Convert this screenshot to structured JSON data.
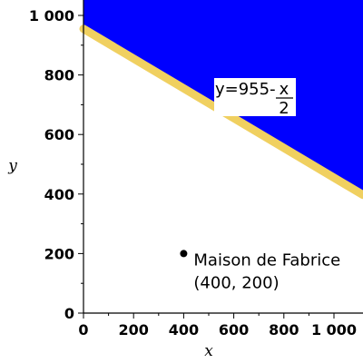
{
  "chart_data": {
    "type": "line",
    "xlabel": "x",
    "ylabel": "y",
    "xlim": [
      0,
      1000
    ],
    "ylim": [
      0,
      1000
    ],
    "x_ticks": [
      "0",
      "200",
      "400",
      "600",
      "800",
      "1 000"
    ],
    "y_ticks": [
      "0",
      "200",
      "400",
      "600",
      "800",
      "1 000"
    ],
    "x_tick_values": [
      0,
      200,
      400,
      600,
      800,
      1000
    ],
    "y_tick_values": [
      0,
      200,
      400,
      600,
      800,
      1000
    ],
    "line": {
      "equation_lhs": "y=955-",
      "equation_num": "x",
      "equation_den": "2",
      "intercept": 955,
      "slope": -0.5,
      "color": "#f0d060"
    },
    "region": {
      "side": "above",
      "color": "#0000ff"
    },
    "point": {
      "x": 400,
      "y": 200,
      "label_line1": "Maison de Fabrice",
      "label_line2": "(400, 200)"
    }
  }
}
